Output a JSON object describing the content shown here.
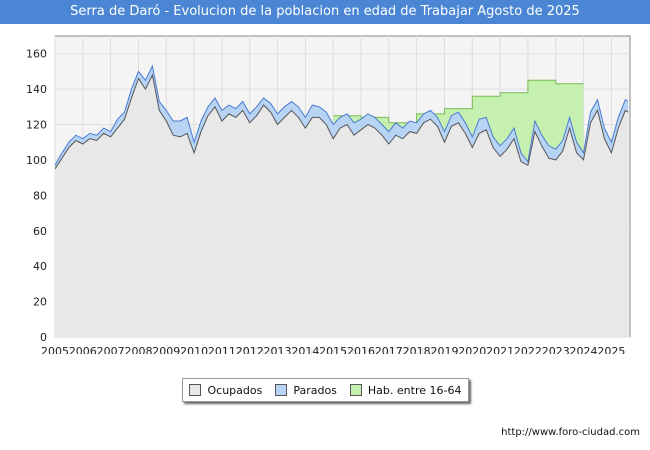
{
  "chart_data": {
    "type": "area",
    "title": "Serra de Daró - Evolucion de la poblacion en edad de Trabajar Agosto de 2025",
    "xlabel": "",
    "ylabel": "",
    "xlim": [
      2005,
      2025.67
    ],
    "ylim": [
      0,
      170
    ],
    "yticks": [
      0,
      20,
      40,
      60,
      80,
      100,
      120,
      140,
      160
    ],
    "xticks": [
      "2005",
      "2006",
      "2007",
      "2008",
      "2009",
      "2010",
      "2011",
      "2012",
      "2013",
      "2014",
      "2015",
      "2016",
      "2017",
      "2018",
      "2019",
      "2020",
      "2021",
      "2022",
      "2023",
      "2024",
      "2025"
    ],
    "grid": true,
    "legend": "bottom-center",
    "legend_items": [
      {
        "label": "Ocupados",
        "color": "#e8e8e8"
      },
      {
        "label": "Parados",
        "color": "#b8d4f4"
      },
      {
        "label": "Hab. entre 16-64",
        "color": "#c6f0b0"
      }
    ],
    "x": [
      2005.0,
      2005.25,
      2005.5,
      2005.75,
      2006.0,
      2006.25,
      2006.5,
      2006.75,
      2007.0,
      2007.25,
      2007.5,
      2007.75,
      2008.0,
      2008.25,
      2008.5,
      2008.75,
      2009.0,
      2009.25,
      2009.5,
      2009.75,
      2010.0,
      2010.25,
      2010.5,
      2010.75,
      2011.0,
      2011.25,
      2011.5,
      2011.75,
      2012.0,
      2012.25,
      2012.5,
      2012.75,
      2013.0,
      2013.25,
      2013.5,
      2013.75,
      2014.0,
      2014.25,
      2014.5,
      2014.75,
      2015.0,
      2015.25,
      2015.5,
      2015.75,
      2016.0,
      2016.25,
      2016.5,
      2016.75,
      2017.0,
      2017.25,
      2017.5,
      2017.75,
      2018.0,
      2018.25,
      2018.5,
      2018.75,
      2019.0,
      2019.25,
      2019.5,
      2019.75,
      2020.0,
      2020.25,
      2020.5,
      2020.75,
      2021.0,
      2021.25,
      2021.5,
      2021.75,
      2022.0,
      2022.25,
      2022.5,
      2022.75,
      2023.0,
      2023.25,
      2023.5,
      2023.75,
      2024.0,
      2024.25,
      2024.5,
      2024.75,
      2025.0,
      2025.25,
      2025.5,
      2025.6
    ],
    "series": [
      {
        "name": "Hab. entre 16-64",
        "values": [
          null,
          null,
          null,
          null,
          null,
          null,
          null,
          null,
          null,
          null,
          null,
          null,
          null,
          null,
          null,
          null,
          null,
          null,
          null,
          null,
          null,
          null,
          null,
          null,
          null,
          null,
          null,
          null,
          null,
          null,
          null,
          null,
          null,
          null,
          null,
          null,
          null,
          null,
          null,
          null,
          125,
          125,
          125,
          125,
          124,
          124,
          124,
          124,
          121,
          121,
          121,
          121,
          126,
          126,
          126,
          126,
          129,
          129,
          129,
          129,
          136,
          136,
          136,
          136,
          138,
          138,
          138,
          138,
          145,
          145,
          145,
          145,
          143,
          143,
          143,
          143,
          null,
          null,
          null,
          null,
          null,
          null,
          null,
          null
        ]
      },
      {
        "name": "Parados",
        "values": [
          97,
          104,
          110,
          114,
          112,
          115,
          114,
          118,
          116,
          123,
          127,
          140,
          150,
          145,
          153,
          133,
          128,
          122,
          122,
          124,
          110,
          122,
          130,
          135,
          128,
          131,
          129,
          133,
          126,
          130,
          135,
          132,
          126,
          130,
          133,
          130,
          124,
          131,
          130,
          127,
          120,
          124,
          126,
          121,
          123,
          126,
          124,
          120,
          116,
          121,
          118,
          122,
          121,
          126,
          128,
          124,
          116,
          125,
          127,
          121,
          113,
          123,
          124,
          113,
          108,
          112,
          118,
          104,
          99,
          122,
          114,
          108,
          106,
          111,
          124,
          110,
          104,
          127,
          134,
          118,
          110,
          124,
          134,
          133
        ]
      },
      {
        "name": "Ocupados",
        "values": [
          95,
          101,
          107,
          111,
          109,
          112,
          111,
          115,
          113,
          118,
          123,
          135,
          146,
          140,
          148,
          128,
          122,
          114,
          113,
          115,
          104,
          116,
          125,
          130,
          122,
          126,
          124,
          128,
          121,
          125,
          131,
          127,
          120,
          124,
          128,
          124,
          118,
          124,
          124,
          120,
          112,
          118,
          120,
          114,
          117,
          120,
          118,
          114,
          109,
          114,
          112,
          116,
          115,
          121,
          123,
          119,
          110,
          119,
          121,
          115,
          107,
          115,
          117,
          107,
          102,
          106,
          112,
          99,
          97,
          116,
          108,
          101,
          100,
          105,
          118,
          104,
          100,
          121,
          128,
          112,
          104,
          118,
          128,
          127
        ]
      }
    ]
  },
  "source": "http://www.foro-ciudad.com",
  "watermark": "FORO-CIUDAD.COM"
}
